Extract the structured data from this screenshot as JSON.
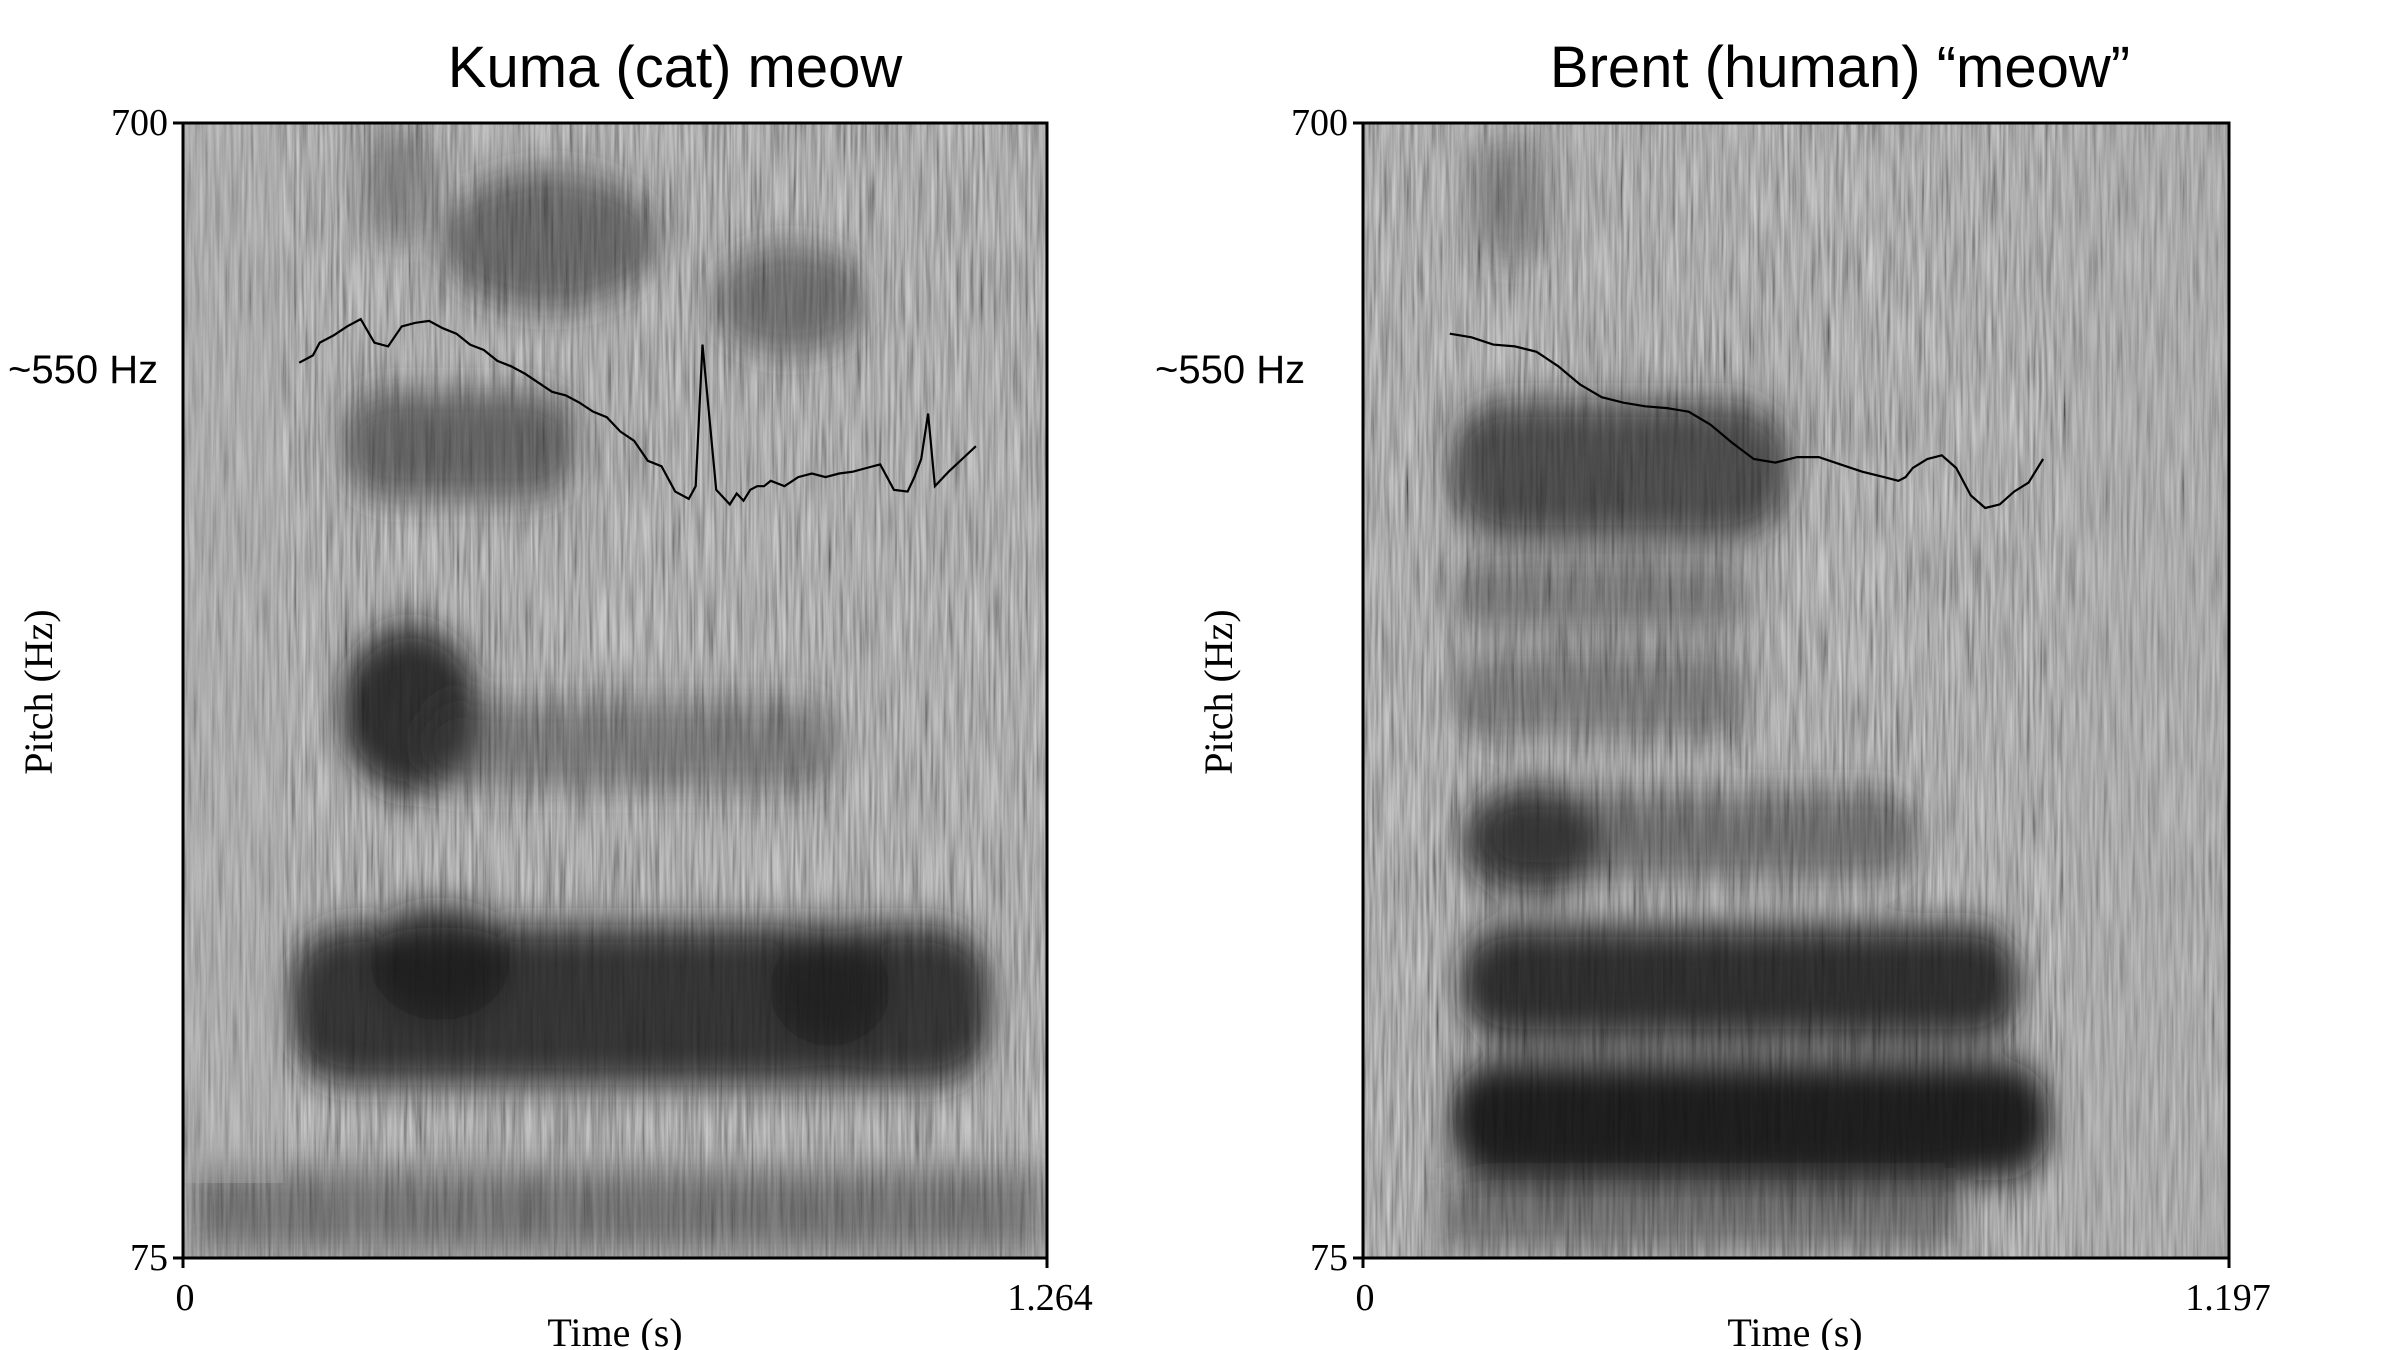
{
  "chart_data": [
    {
      "type": "line",
      "plot_kind": "spectrogram with pitch contour",
      "title": "Kuma (cat) meow",
      "xlabel": "Time (s)",
      "ylabel": "Pitch (Hz)",
      "xlim": [
        0,
        1.264
      ],
      "ylim": [
        75,
        700
      ],
      "x_tick_labels": [
        "0",
        "1.264"
      ],
      "y_tick_labels": [
        "75",
        "700"
      ],
      "annotation": "~550 Hz",
      "annotation_value": 550,
      "voiced_start": 0.16,
      "voiced_end": 1.16,
      "series": [
        {
          "name": "pitch",
          "x": [
            0.17,
            0.19,
            0.2,
            0.22,
            0.24,
            0.26,
            0.28,
            0.3,
            0.32,
            0.34,
            0.36,
            0.38,
            0.4,
            0.42,
            0.44,
            0.46,
            0.48,
            0.5,
            0.52,
            0.54,
            0.56,
            0.58,
            0.6,
            0.62,
            0.64,
            0.66,
            0.68,
            0.7,
            0.72,
            0.74,
            0.75,
            0.76,
            0.78,
            0.8,
            0.81,
            0.82,
            0.83,
            0.84,
            0.85,
            0.86,
            0.88,
            0.9,
            0.92,
            0.94,
            0.96,
            0.98,
            1.0,
            1.02,
            1.04,
            1.06,
            1.07,
            1.08,
            1.09,
            1.1,
            1.12,
            1.14,
            1.16
          ],
          "y": [
            568,
            572,
            579,
            583,
            588,
            592,
            579,
            577,
            588,
            590,
            591,
            587,
            584,
            578,
            575,
            569,
            566,
            562,
            557,
            552,
            550,
            546,
            541,
            538,
            530,
            525,
            514,
            511,
            497,
            493,
            500,
            578,
            498,
            490,
            496,
            492,
            498,
            500,
            500,
            503,
            500,
            505,
            507,
            505,
            507,
            508,
            510,
            512,
            498,
            497,
            505,
            515,
            540,
            500,
            508,
            515,
            522
          ]
        }
      ]
    },
    {
      "type": "line",
      "plot_kind": "spectrogram with pitch contour",
      "title": "Brent (human) “meow”",
      "xlabel": "Time (s)",
      "ylabel": "Pitch (Hz)",
      "xlim": [
        0,
        1.197
      ],
      "ylim": [
        75,
        700
      ],
      "x_tick_labels": [
        "0",
        "1.197"
      ],
      "y_tick_labels": [
        "75",
        "700"
      ],
      "annotation": "~550 Hz",
      "annotation_value": 550,
      "voiced_start": 0.11,
      "voiced_end": 0.95,
      "series": [
        {
          "name": "pitch",
          "x": [
            0.12,
            0.15,
            0.18,
            0.21,
            0.24,
            0.27,
            0.3,
            0.33,
            0.36,
            0.39,
            0.42,
            0.45,
            0.48,
            0.51,
            0.54,
            0.57,
            0.6,
            0.63,
            0.66,
            0.69,
            0.72,
            0.74,
            0.75,
            0.76,
            0.78,
            0.8,
            0.82,
            0.84,
            0.86,
            0.88,
            0.9,
            0.92,
            0.94
          ],
          "y": [
            584,
            582,
            578,
            577,
            574,
            566,
            556,
            549,
            546,
            544,
            543,
            541,
            534,
            524,
            515,
            513,
            516,
            516,
            512,
            508,
            505,
            503,
            505,
            510,
            515,
            517,
            510,
            495,
            488,
            490,
            497,
            502,
            515
          ]
        }
      ]
    }
  ]
}
